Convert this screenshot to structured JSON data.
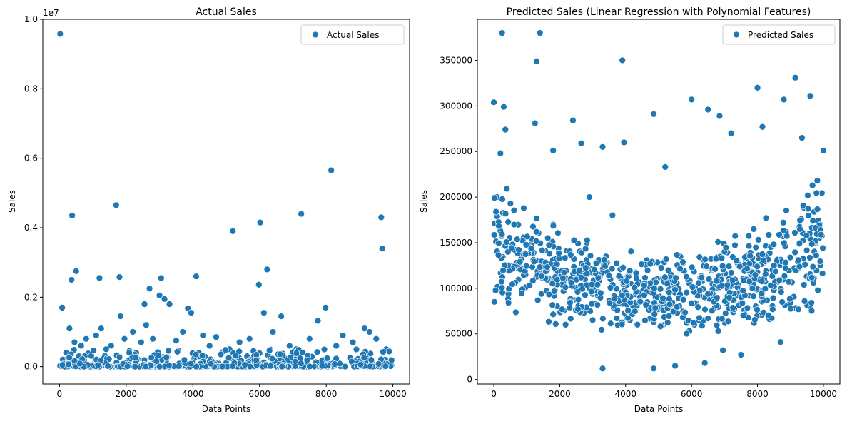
{
  "chart_data": [
    {
      "type": "scatter",
      "title": "Actual Sales",
      "xlabel": "Data Points",
      "ylabel": "Sales",
      "xlim": [
        -500,
        10500
      ],
      "ylim": [
        -0.05,
        1.0
      ],
      "y_scale_offset_text": "1e7",
      "x_ticks": [
        0,
        2000,
        4000,
        6000,
        8000,
        10000
      ],
      "x_tick_labels": [
        "0",
        "2000",
        "4000",
        "6000",
        "8000",
        "10000"
      ],
      "y_ticks": [
        0.0,
        0.2,
        0.4,
        0.6,
        0.8,
        1.0
      ],
      "y_tick_labels": [
        "0.0",
        "0.2",
        "0.4",
        "0.6",
        "0.8",
        "1.0"
      ],
      "grid": false,
      "legend": {
        "position": "top-right",
        "entries": [
          "Actual Sales"
        ]
      },
      "marker_color": "#1f77b4",
      "series": [
        {
          "name": "Actual Sales",
          "x": [
            20,
            80,
            300,
            360,
            380,
            500,
            1200,
            1250,
            1700,
            1800,
            1830,
            2550,
            2700,
            3000,
            3050,
            3150,
            3300,
            3850,
            3950,
            4100,
            5200,
            5980,
            6020,
            6130,
            6230,
            6650,
            7250,
            7750,
            7980,
            8150,
            9150,
            9650,
            9680,
            100,
            200,
            450,
            650,
            800,
            950,
            1100,
            1400,
            1550,
            1950,
            2200,
            2300,
            2450,
            2600,
            2800,
            3500,
            3700,
            4300,
            4500,
            4700,
            5100,
            5400,
            5700,
            6400,
            6900,
            7100,
            7500,
            8300,
            8500,
            8800,
            9300,
            9500,
            9800,
            9950
          ],
          "y": [
            0.958,
            0.17,
            0.11,
            0.25,
            0.435,
            0.275,
            0.255,
            0.11,
            0.465,
            0.258,
            0.145,
            0.18,
            0.225,
            0.205,
            0.255,
            0.195,
            0.18,
            0.168,
            0.155,
            0.26,
            0.39,
            0.236,
            0.415,
            0.155,
            0.28,
            0.145,
            0.44,
            0.132,
            0.17,
            0.565,
            0.11,
            0.43,
            0.34,
            0.02,
            0.04,
            0.07,
            0.06,
            0.08,
            0.03,
            0.09,
            0.05,
            0.06,
            0.08,
            0.1,
            0.04,
            0.07,
            0.12,
            0.08,
            0.075,
            0.1,
            0.09,
            0.06,
            0.085,
            0.05,
            0.07,
            0.08,
            0.1,
            0.06,
            0.05,
            0.08,
            0.06,
            0.09,
            0.07,
            0.1,
            0.08,
            0.05,
            0.02
          ]
        }
      ]
    },
    {
      "type": "scatter",
      "title": "Predicted Sales (Linear Regression with Polynomial Features)",
      "xlabel": "Data Points",
      "ylabel": "Sales",
      "xlim": [
        -500,
        10500
      ],
      "ylim": [
        -5000,
        395000
      ],
      "x_ticks": [
        0,
        2000,
        4000,
        6000,
        8000,
        10000
      ],
      "x_tick_labels": [
        "0",
        "2000",
        "4000",
        "6000",
        "8000",
        "10000"
      ],
      "y_ticks": [
        0,
        50000,
        100000,
        150000,
        200000,
        250000,
        300000,
        350000
      ],
      "y_tick_labels": [
        "0",
        "50000",
        "100000",
        "150000",
        "200000",
        "250000",
        "300000",
        "350000"
      ],
      "grid": false,
      "legend": {
        "position": "top-right",
        "entries": [
          "Predicted Sales"
        ]
      },
      "marker_color": "#1f77b4",
      "series": [
        {
          "name": "Predicted Sales",
          "x": [
            250,
            1300,
            1400,
            3900,
            9150,
            0,
            300,
            6000,
            8000,
            8800,
            9600,
            4850,
            6500,
            6850,
            200,
            350,
            1250,
            2400,
            2650,
            3300,
            3950,
            7200,
            8150,
            9350,
            10000,
            1800,
            5200,
            2900,
            3600,
            3300,
            4850,
            5500,
            6400,
            6950,
            7500,
            8700
          ],
          "y": [
            380000,
            349000,
            380000,
            350000,
            331000,
            304000,
            299000,
            307000,
            320000,
            307000,
            311000,
            291000,
            296000,
            289000,
            248000,
            274000,
            281000,
            284000,
            259000,
            255000,
            260000,
            270000,
            277000,
            265000,
            251000,
            251000,
            233000,
            200000,
            180000,
            12000,
            12000,
            15000,
            18000,
            32000,
            27000,
            41000
          ]
        }
      ]
    }
  ]
}
